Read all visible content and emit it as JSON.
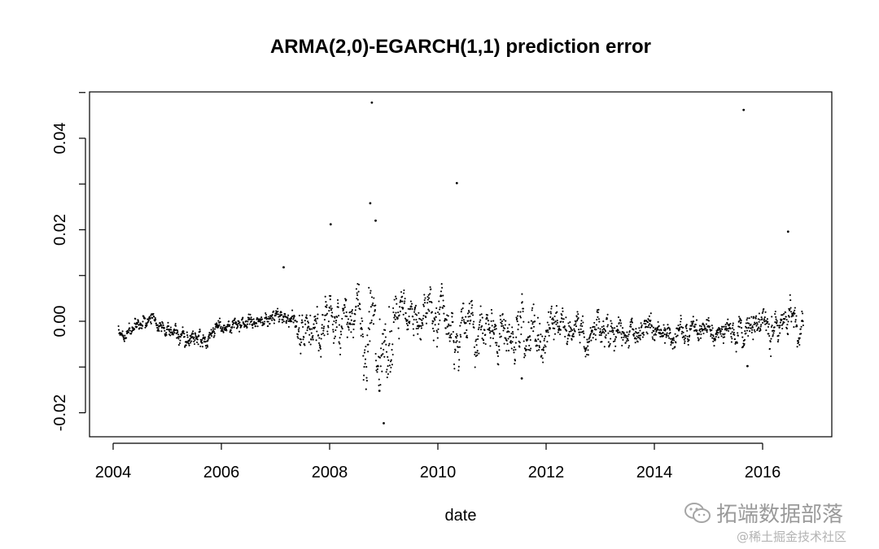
{
  "chart_data": {
    "type": "scatter",
    "title": "ARMA(2,0)-EGARCH(1,1) prediction error",
    "xlabel": "date",
    "ylabel": "",
    "x_ticks": [
      "2004",
      "2006",
      "2008",
      "2010",
      "2012",
      "2014",
      "2016"
    ],
    "y_ticks": [
      "-0.02",
      "0.00",
      "0.02",
      "0.04"
    ],
    "xlim": [
      2003.6,
      2017.3
    ],
    "ylim": [
      -0.025,
      0.05
    ],
    "grid": false,
    "point_color": "#000000",
    "x_range": [
      2004.1,
      2016.75
    ],
    "notable_points": [
      {
        "x": 2008.78,
        "y": 0.0478
      },
      {
        "x": 2008.75,
        "y": 0.0258
      },
      {
        "x": 2008.02,
        "y": 0.0212
      },
      {
        "x": 2008.85,
        "y": 0.022
      },
      {
        "x": 2010.35,
        "y": 0.0302
      },
      {
        "x": 2015.65,
        "y": 0.0462
      },
      {
        "x": 2016.47,
        "y": 0.0196
      },
      {
        "x": 2009.0,
        "y": -0.0223
      },
      {
        "x": 2008.92,
        "y": -0.0152
      },
      {
        "x": 2007.15,
        "y": 0.0118
      },
      {
        "x": 2011.55,
        "y": -0.0125
      },
      {
        "x": 2015.72,
        "y": -0.0098
      }
    ]
  },
  "watermark": {
    "main": "拓端数据部落",
    "sub": "@稀土掘金技术社区"
  }
}
